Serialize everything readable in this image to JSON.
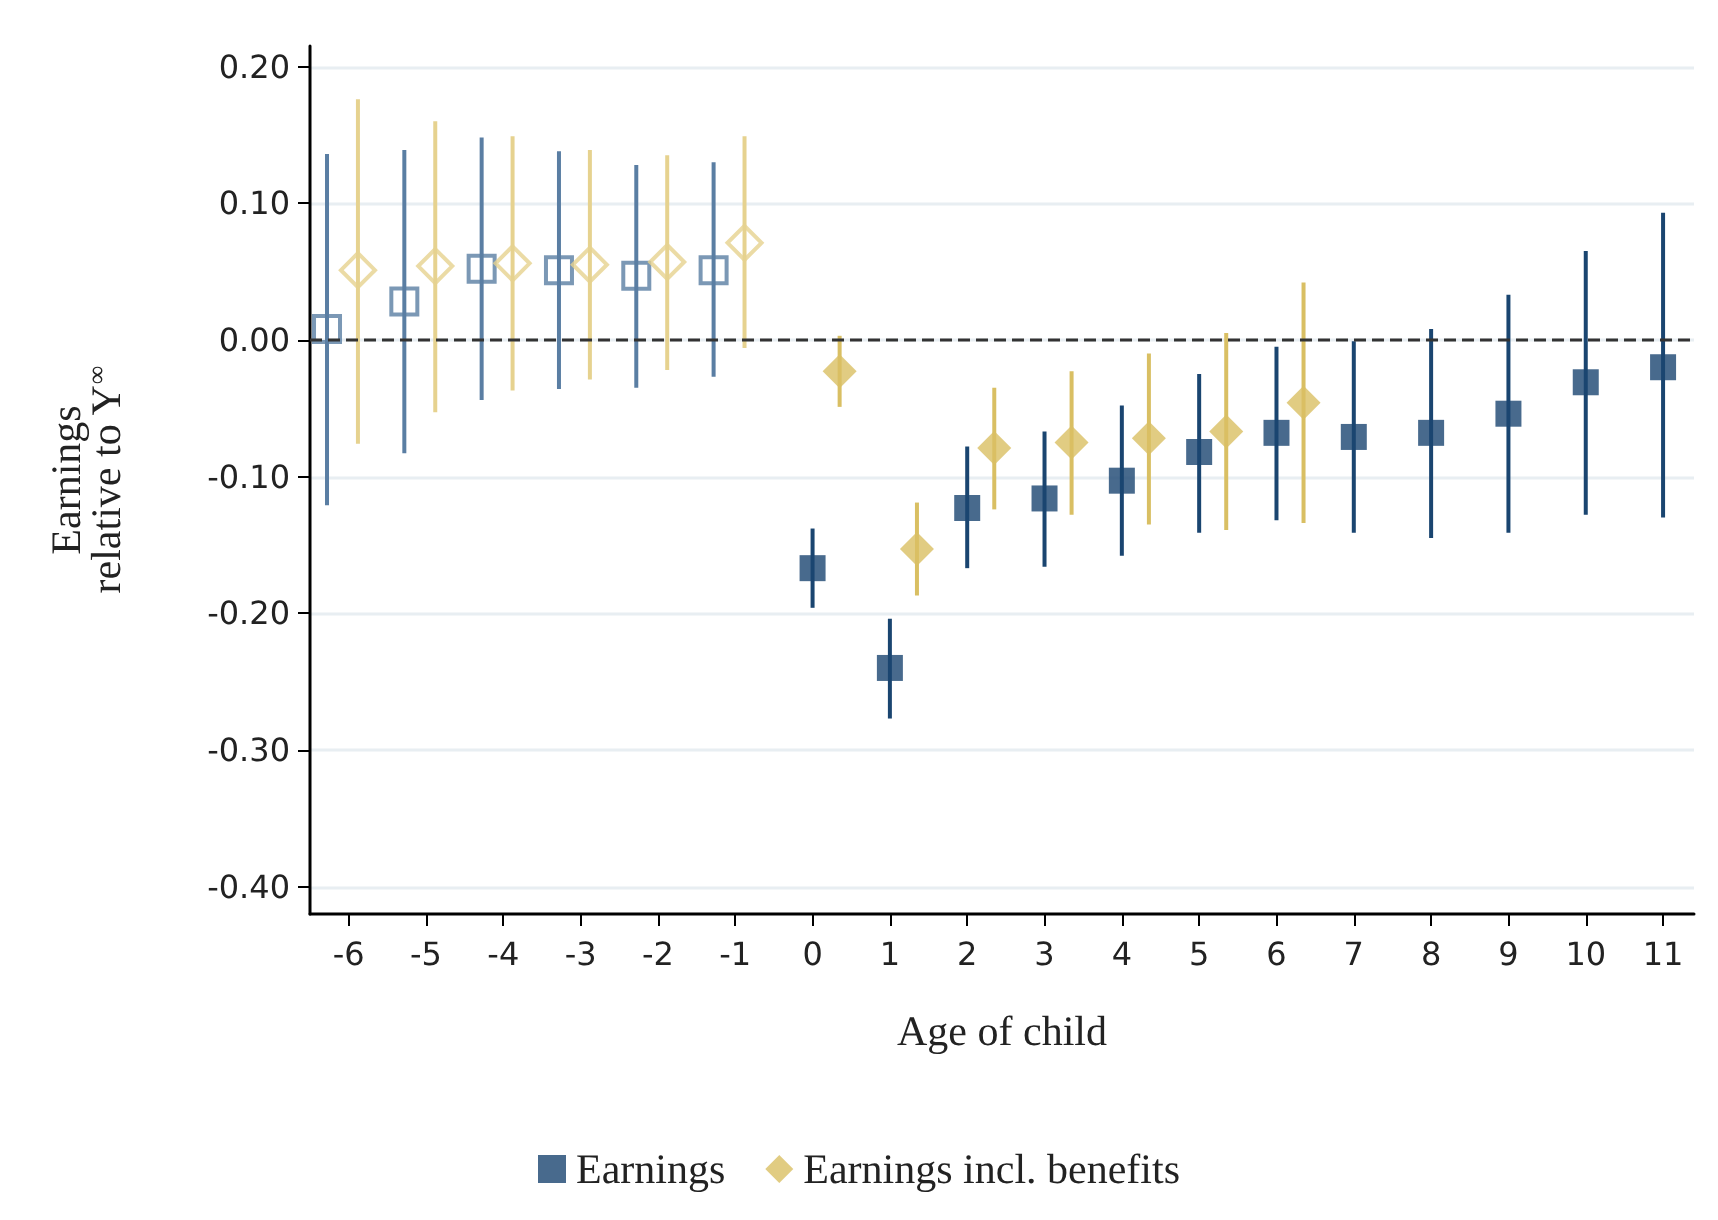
{
  "chart_data": {
    "type": "scatter",
    "xlabel": "Age of child",
    "ylabel": "Earnings\nrelative to Y$^{∞}$",
    "xlim": [
      -6.5,
      11.4
    ],
    "xticks": [
      -6,
      -5,
      -4,
      -3,
      -2,
      -1,
      0,
      1,
      2,
      3,
      4,
      5,
      6,
      7,
      8,
      9,
      10,
      11
    ],
    "ylim": [
      -0.42,
      0.215
    ],
    "yticks": [
      {
        "value": -0.4,
        "label": "-0.40"
      },
      {
        "value": -0.3,
        "label": "-0.30"
      },
      {
        "value": -0.2,
        "label": "-0.20"
      },
      {
        "value": -0.1,
        "label": "-0.10"
      },
      {
        "value": 0,
        "label": "0.00"
      },
      {
        "value": 0.1,
        "label": "0.10"
      },
      {
        "value": 0.2,
        "label": "0.20"
      }
    ],
    "grid": "y",
    "legend": "bottom",
    "ref_lines": [
      {
        "axis": "y",
        "value": 0,
        "color": "#333333",
        "line_style": "dashed"
      }
    ],
    "series": [
      {
        "color": "#5a7ea3",
        "marker": "square",
        "x": [
          -6.28,
          -5.28,
          -4.28,
          -3.28,
          -2.28,
          -1.28
        ],
        "values": [
          0.008,
          0.028,
          0.052,
          0.051,
          0.047,
          0.051
        ],
        "errors": [
          [
            -0.121,
            0.136
          ],
          [
            -0.083,
            0.139
          ],
          [
            -0.044,
            0.148
          ],
          [
            -0.036,
            0.138
          ],
          [
            -0.035,
            0.128
          ],
          [
            -0.027,
            0.13
          ]
        ]
      },
      {
        "color": "#e6d28f",
        "marker": "diamond",
        "x": [
          -5.88,
          -4.88,
          -3.88,
          -2.88,
          -1.88,
          -0.88
        ],
        "values": [
          0.051,
          0.054,
          0.056,
          0.055,
          0.057,
          0.071
        ],
        "errors": [
          [
            -0.076,
            0.176
          ],
          [
            -0.053,
            0.16
          ],
          [
            -0.037,
            0.149
          ],
          [
            -0.029,
            0.139
          ],
          [
            -0.022,
            0.135
          ],
          [
            -0.006,
            0.149
          ]
        ]
      },
      {
        "name": "Earnings",
        "color": "#1a4570",
        "marker": "square",
        "x": [
          0,
          1,
          2,
          3,
          4,
          5,
          6,
          7,
          8,
          9,
          10,
          11
        ],
        "values": [
          -0.167,
          -0.24,
          -0.123,
          -0.116,
          -0.103,
          -0.082,
          -0.068,
          -0.071,
          -0.068,
          -0.054,
          -0.031,
          -0.02
        ],
        "errors": [
          [
            -0.196,
            -0.138
          ],
          [
            -0.277,
            -0.204
          ],
          [
            -0.167,
            -0.078
          ],
          [
            -0.166,
            -0.067
          ],
          [
            -0.158,
            -0.048
          ],
          [
            -0.141,
            -0.025
          ],
          [
            -0.132,
            -0.005
          ],
          [
            -0.141,
            -0.001
          ],
          [
            -0.145,
            0.008
          ],
          [
            -0.141,
            0.033
          ],
          [
            -0.128,
            0.065
          ],
          [
            -0.13,
            0.093
          ]
        ]
      },
      {
        "name": "Earnings incl. benefits",
        "color": "#d9bf63",
        "marker": "diamond",
        "x": [
          0.35,
          1.35,
          2.35,
          3.35,
          4.35,
          5.35,
          6.35
        ],
        "values": [
          -0.023,
          -0.153,
          -0.079,
          -0.075,
          -0.072,
          -0.067,
          -0.046
        ],
        "errors": [
          [
            -0.049,
            0.003
          ],
          [
            -0.187,
            -0.119
          ],
          [
            -0.124,
            -0.035
          ],
          [
            -0.128,
            -0.023
          ],
          [
            -0.135,
            -0.01
          ],
          [
            -0.139,
            0.005
          ],
          [
            -0.134,
            0.042
          ]
        ]
      }
    ]
  }
}
